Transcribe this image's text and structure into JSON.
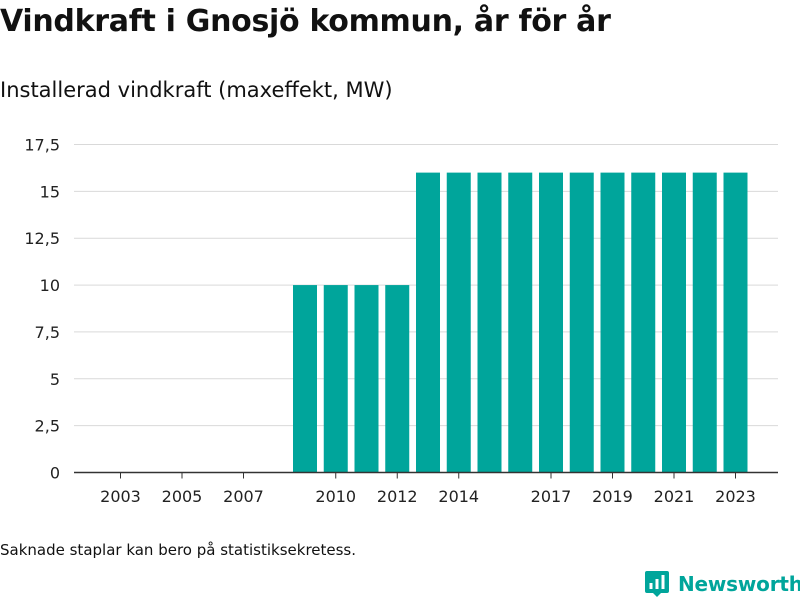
{
  "title": "Vindkraft i Gnosjö kommun, år för år",
  "subtitle": "Installerad vindkraft (maxeffekt, MW)",
  "footnote": "Saknade staplar kan bero på statistiksekretess.",
  "brand": {
    "name": "Newsworthy",
    "icon": "newsworthy-logo-icon",
    "color": "#00a59b"
  },
  "chart_data": {
    "type": "bar",
    "categories": [
      "2003",
      "2004",
      "2005",
      "2006",
      "2007",
      "2008",
      "2009",
      "2010",
      "2011",
      "2012",
      "2013",
      "2014",
      "2015",
      "2016",
      "2017",
      "2018",
      "2019",
      "2020",
      "2021",
      "2022",
      "2023"
    ],
    "values": [
      null,
      null,
      null,
      null,
      null,
      null,
      10,
      10,
      10,
      10,
      16,
      16,
      16,
      16,
      16,
      16,
      16,
      16,
      16,
      16,
      16
    ],
    "xtick_labels": [
      "2003",
      "2005",
      "2007",
      "2010",
      "2012",
      "2014",
      "2017",
      "2019",
      "2021",
      "2023"
    ],
    "yticks": [
      0,
      2.5,
      5,
      7.5,
      10,
      12.5,
      15,
      17.5
    ],
    "ytick_labels": [
      "0",
      "2,5",
      "5",
      "7,5",
      "10",
      "12,5",
      "15",
      "17,5"
    ],
    "ylim": [
      0,
      17.5
    ],
    "bar_color": "#00a59b",
    "grid": true,
    "legend": false,
    "xlabel": "",
    "ylabel": ""
  }
}
